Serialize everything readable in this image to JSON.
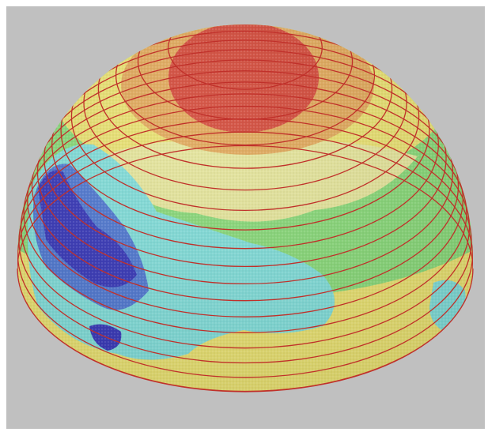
{
  "colors": {
    "background": "#c0c0c0",
    "contour_line": "#c0302a",
    "red_zone": "#d24a3a",
    "orange_zone": "#e0a85a",
    "yellow_zone": "#e8e070",
    "pale_yellow_zone": "#e4e49a",
    "green_zone": "#88d878",
    "cyan_zone": "#80dcd8",
    "blue_zone": "#5078d0",
    "dark_blue_zone": "#3838b8"
  },
  "contour_line_count": 17,
  "scene": {
    "type": "hemisphere-point-cloud",
    "colormap": "jet",
    "visible_text": "none"
  }
}
